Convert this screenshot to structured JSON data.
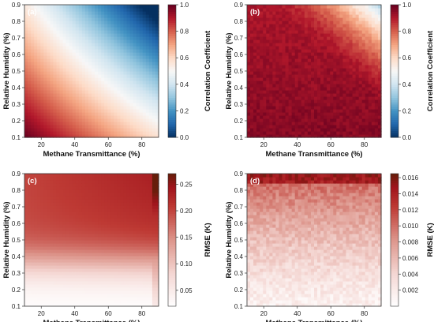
{
  "chart_data": [
    {
      "type": "heatmap",
      "panel_label": "(a)",
      "xlabel": "Methane Transmittance (%)",
      "ylabel": "Relative Humidity (%)",
      "colorbar_label": "Correlation Coefficient",
      "colormap": "red-white-blue",
      "xlim": [
        10,
        90
      ],
      "ylim": [
        0.1,
        0.9
      ],
      "x_ticks": [
        "20",
        "40",
        "60",
        "80"
      ],
      "y_ticks": [
        "0.1",
        "0.2",
        "0.3",
        "0.4",
        "0.5",
        "0.6",
        "0.7",
        "0.8",
        "0.9"
      ],
      "colorbar_range": [
        0.0,
        1.0
      ],
      "colorbar_ticks": [
        "0.0",
        "0.2",
        "0.4",
        "0.6",
        "0.8",
        "1.0"
      ],
      "pattern": "smooth gradient: ~1.0 at low humidity / low transmittance, ~0.4 at high humidity / high transmittance"
    },
    {
      "type": "heatmap",
      "panel_label": "(b)",
      "xlabel": "Methane Transmittance (%)",
      "ylabel": "Relative Humidity (%)",
      "colorbar_label": "Correlation Coefficient",
      "colormap": "red-white-blue",
      "xlim": [
        10,
        90
      ],
      "ylim": [
        0.1,
        0.9
      ],
      "x_ticks": [
        "20",
        "40",
        "60",
        "80"
      ],
      "y_ticks": [
        "0.1",
        "0.2",
        "0.3",
        "0.4",
        "0.5",
        "0.6",
        "0.7",
        "0.8",
        "0.9"
      ],
      "colorbar_range": [
        0.0,
        1.0
      ],
      "colorbar_ticks": [
        "0.0",
        "0.2",
        "0.4",
        "0.6",
        "0.8",
        "1.0"
      ],
      "pattern": "mostly ~0.95, dropping toward ~0.4 in the top-right corner, noisy texture"
    },
    {
      "type": "heatmap",
      "panel_label": "(c)",
      "xlabel": "Methane Transmittance (%)",
      "ylabel": "Relative Humidity (%)",
      "colorbar_label": "RMSE (K)",
      "colormap": "white-red-brown",
      "xlim": [
        10,
        90
      ],
      "ylim": [
        0.1,
        0.9
      ],
      "x_ticks": [
        "20",
        "40",
        "60",
        "80"
      ],
      "y_ticks": [
        "0.1",
        "0.2",
        "0.3",
        "0.4",
        "0.5",
        "0.6",
        "0.7",
        "0.8",
        "0.9"
      ],
      "colorbar_range": [
        0.02,
        0.27
      ],
      "colorbar_ticks": [
        "0.05",
        "0.10",
        "0.15",
        "0.20",
        "0.25"
      ],
      "pattern": "low RMSE at low humidity, rising to ~0.2 above 0.6 humidity, highest near transmittance 88"
    },
    {
      "type": "heatmap",
      "panel_label": "(d)",
      "xlabel": "Methane Transmittance (%)",
      "ylabel": "Relative Humidity (%)",
      "colorbar_label": "RMSE (K)",
      "colormap": "white-red-brown",
      "xlim": [
        10,
        90
      ],
      "ylim": [
        0.1,
        0.9
      ],
      "x_ticks": [
        "20",
        "40",
        "60",
        "80"
      ],
      "y_ticks": [
        "0.1",
        "0.2",
        "0.3",
        "0.4",
        "0.5",
        "0.6",
        "0.7",
        "0.8",
        "0.9"
      ],
      "colorbar_range": [
        0.0,
        0.0165
      ],
      "colorbar_ticks": [
        "0.002",
        "0.004",
        "0.006",
        "0.008",
        "0.010",
        "0.012",
        "0.014",
        "0.016"
      ],
      "pattern": "noisy, increases with humidity from ~0.002 to ~0.015 at 0.9"
    }
  ]
}
